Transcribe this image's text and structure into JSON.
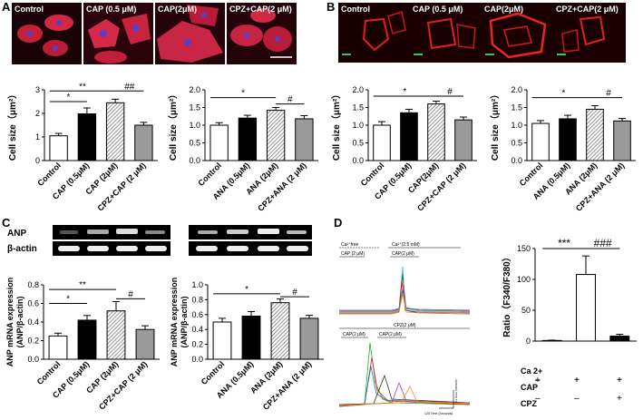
{
  "panel_letters": {
    "a": "A",
    "b": "B",
    "c": "C",
    "d": "D"
  },
  "panel_a": {
    "images": [
      {
        "label": "Control",
        "bg": "#1a0306"
      },
      {
        "label": "CAP (0.5 μM)",
        "bg": "#2a040a"
      },
      {
        "label": "CAP(2μM)",
        "bg": "#24040a"
      },
      {
        "label": "CPZ+CAP(2 μM)",
        "bg": "#24040a"
      }
    ]
  },
  "panel_b": {
    "images": [
      {
        "label": "Control",
        "bg": "#180000"
      },
      {
        "label": "CAP (0.5 μM)",
        "bg": "#1a0000"
      },
      {
        "label": "CAP(2μM)",
        "bg": "#1a0000"
      },
      {
        "label": "CPZ+CAP(2 μM)",
        "bg": "#1a0000"
      }
    ]
  },
  "panel_c": {
    "gel_row_labels": [
      "ANP",
      "β-actin"
    ]
  },
  "panel_d": {
    "trace_labels": {
      "ca_free": "Ca²⁺free",
      "ca_25": "Ca²⁺(2.5 mM)",
      "cap1": "CAP (2 μM)",
      "cap2": "CAP(2 μM)",
      "cpz": "CPZ(2 μM)",
      "cap3": "CAP(2 μM)",
      "cap4": "CAP(2 μM)",
      "scalebar_x": "120 Time (Seconds)",
      "scalebar_y": "0.2 Ratio (340/380)"
    },
    "condition_rows": [
      {
        "label": "Ca 2+",
        "marks": [
          "–",
          "+",
          "+"
        ]
      },
      {
        "label": "CAP",
        "marks": [
          "+",
          "+",
          "+"
        ]
      },
      {
        "label": "CPZ",
        "marks": [
          "–",
          "–",
          "+"
        ]
      }
    ]
  },
  "chart_data": [
    {
      "id": "a1",
      "type": "bar",
      "categories": [
        "Control",
        "CAP (0.5μM)",
        "CAP (2μM)",
        "CPZ+CAP (2 μM)"
      ],
      "values": [
        1.05,
        1.98,
        2.45,
        1.5
      ],
      "errors": [
        0.1,
        0.25,
        0.15,
        0.12
      ],
      "fills": [
        "white",
        "black",
        "hatch",
        "gray"
      ],
      "ylabel": "Cell size（μm²）",
      "ylim": [
        0,
        3
      ],
      "yticks": [
        "0",
        "1",
        "2",
        "3"
      ],
      "sig": [
        {
          "text": "**",
          "from": 0,
          "to": 2,
          "level": 2.95
        },
        {
          "text": "*",
          "from": 0,
          "to": 1,
          "level": 2.5
        },
        {
          "text": "##",
          "from": 2,
          "to": 3,
          "level": 2.95
        }
      ]
    },
    {
      "id": "a2",
      "type": "bar",
      "categories": [
        "Control",
        "ANA (0.5μM)",
        "ANA (2μM)",
        "CPZ+ANA (2 μM)"
      ],
      "values": [
        1.0,
        1.2,
        1.42,
        1.18
      ],
      "errors": [
        0.07,
        0.08,
        0.08,
        0.09
      ],
      "fills": [
        "white",
        "black",
        "hatch",
        "gray"
      ],
      "ylabel": "Cell size（μm²）",
      "ylim": [
        0,
        2.0
      ],
      "yticks": [
        "0.0",
        "0.5",
        "1.0",
        "1.5",
        "2.0"
      ],
      "sig": [
        {
          "text": "*",
          "from": 0,
          "to": 2,
          "level": 1.78
        },
        {
          "text": "#",
          "from": 2,
          "to": 3,
          "level": 1.6
        }
      ]
    },
    {
      "id": "b1",
      "type": "bar",
      "categories": [
        "Control",
        "CAP (0.5μM)",
        "CAP(2μM)",
        "CPZ+CAP (2 μM)"
      ],
      "values": [
        1.0,
        1.35,
        1.6,
        1.15
      ],
      "errors": [
        0.1,
        0.1,
        0.08,
        0.08
      ],
      "fills": [
        "white",
        "black",
        "hatch",
        "gray"
      ],
      "ylabel": "Cell size（μm²）",
      "ylim": [
        0,
        2.0
      ],
      "yticks": [
        "0.0",
        "0.5",
        "1.0",
        "1.5",
        "2.0"
      ],
      "sig": [
        {
          "text": "*",
          "from": 0,
          "to": 2,
          "level": 1.82
        },
        {
          "text": "#",
          "from": 2,
          "to": 3,
          "level": 1.82
        }
      ]
    },
    {
      "id": "b2",
      "type": "bar",
      "categories": [
        "Control",
        "ANA (0.5μM)",
        "ANA (2μM)",
        "CPZ+ANA (2 μM)"
      ],
      "values": [
        1.05,
        1.18,
        1.45,
        1.12
      ],
      "errors": [
        0.08,
        0.1,
        0.1,
        0.07
      ],
      "fills": [
        "white",
        "black",
        "hatch",
        "gray"
      ],
      "ylabel": "Cell size（μm²）",
      "ylim": [
        0,
        2.0
      ],
      "yticks": [
        "0.0",
        "0.5",
        "1.0",
        "1.5",
        "2.0"
      ],
      "sig": [
        {
          "text": "*",
          "from": 0,
          "to": 2,
          "level": 1.78
        },
        {
          "text": "#",
          "from": 2,
          "to": 3,
          "level": 1.78
        }
      ]
    },
    {
      "id": "c1",
      "type": "bar",
      "categories": [
        "Control",
        "CAP (0.5μM)",
        "CAP (2μM)",
        "CPZ+CAP (2 μM)"
      ],
      "values": [
        0.25,
        0.42,
        0.52,
        0.32
      ],
      "errors": [
        0.03,
        0.05,
        0.1,
        0.04
      ],
      "fills": [
        "white",
        "black",
        "hatch",
        "gray"
      ],
      "ylabel": "ANP mRNA expression (ANP/β-actin)",
      "ylim": [
        0,
        0.8
      ],
      "yticks": [
        "0.0",
        "0.2",
        "0.4",
        "0.6",
        "0.8"
      ],
      "sig": [
        {
          "text": "**",
          "from": 0,
          "to": 2,
          "level": 0.75
        },
        {
          "text": "*",
          "from": 0,
          "to": 1,
          "level": 0.6
        },
        {
          "text": "#",
          "from": 2,
          "to": 3,
          "level": 0.65
        }
      ]
    },
    {
      "id": "c2",
      "type": "bar",
      "categories": [
        "Control",
        "ANA (0.5μM)",
        "ANA (2μM)",
        "CPZ+ANA (2 μM)"
      ],
      "values": [
        0.5,
        0.58,
        0.76,
        0.55
      ],
      "errors": [
        0.05,
        0.06,
        0.05,
        0.04
      ],
      "fills": [
        "white",
        "black",
        "hatch",
        "gray"
      ],
      "ylabel": "ANP mRNA expression (ANP/β-actin)",
      "ylim": [
        0,
        1.0
      ],
      "yticks": [
        "0.0",
        "0.2",
        "0.4",
        "0.6",
        "0.8",
        "1.0"
      ],
      "sig": [
        {
          "text": "*",
          "from": 0,
          "to": 2,
          "level": 0.88
        },
        {
          "text": "#",
          "from": 2,
          "to": 3,
          "level": 0.84
        }
      ]
    },
    {
      "id": "d1",
      "type": "bar",
      "categories": [
        "",
        "",
        ""
      ],
      "values": [
        1,
        108,
        8
      ],
      "errors": [
        0.5,
        30,
        3
      ],
      "fills": [
        "white",
        "white",
        "black"
      ],
      "ylabel": "Ratio（F340/F380）",
      "ylim": [
        0,
        150
      ],
      "yticks": [
        "0",
        "50",
        "100",
        "150"
      ],
      "sig": [
        {
          "text": "***",
          "from": 0,
          "to": 1,
          "level": 150
        },
        {
          "text": "###",
          "from": 1,
          "to": 2,
          "level": 150
        }
      ]
    }
  ]
}
